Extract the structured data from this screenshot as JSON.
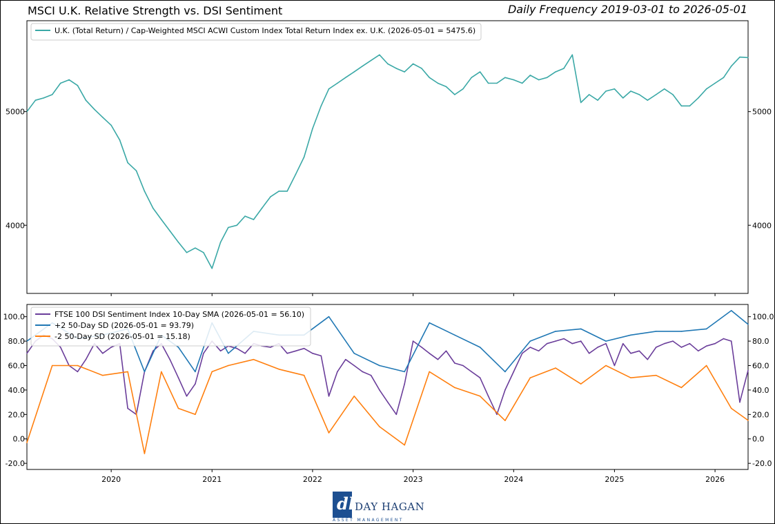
{
  "header": {
    "title": "MSCI U.K. Relative Strength vs. DSI Sentiment",
    "frequency": "Daily Frequency 2019-03-01 to 2026-05-01"
  },
  "logo": {
    "name": "DAY HAGAN",
    "subtitle": "ASSET MANAGEMENT"
  },
  "colors": {
    "teal": "#3aa8a6",
    "purple": "#6a3d9a",
    "blue": "#1f77b4",
    "orange": "#ff7f0e"
  },
  "chart_data": [
    {
      "type": "line",
      "x_range": [
        "2019-03-01",
        "2026-05-01"
      ],
      "ylim": [
        3400,
        5800
      ],
      "yticks": [
        4000,
        5000
      ],
      "ytick_labels": [
        "4000",
        "5000"
      ],
      "grid": false,
      "legend_position": "top-left",
      "series": [
        {
          "name": "U.K. (Total Return) / Cap-Weighted MSCI ACWI Custom Index Total Return Index ex. U.K. (2026-05-01 = 5475.6)",
          "color": "#3aa8a6",
          "x": [
            "2019-03-01",
            "2019-04-01",
            "2019-05-01",
            "2019-06-01",
            "2019-07-01",
            "2019-08-01",
            "2019-09-01",
            "2019-10-01",
            "2019-11-01",
            "2019-12-01",
            "2020-01-01",
            "2020-02-01",
            "2020-03-01",
            "2020-04-01",
            "2020-05-01",
            "2020-06-01",
            "2020-07-01",
            "2020-08-01",
            "2020-09-01",
            "2020-10-01",
            "2020-11-01",
            "2020-12-01",
            "2021-01-01",
            "2021-02-01",
            "2021-03-01",
            "2021-04-01",
            "2021-05-01",
            "2021-06-01",
            "2021-07-01",
            "2021-08-01",
            "2021-09-01",
            "2021-10-01",
            "2021-11-01",
            "2021-12-01",
            "2022-01-01",
            "2022-02-01",
            "2022-03-01",
            "2022-04-01",
            "2022-05-01",
            "2022-06-01",
            "2022-07-01",
            "2022-08-01",
            "2022-09-01",
            "2022-10-01",
            "2022-11-01",
            "2022-12-01",
            "2023-01-01",
            "2023-02-01",
            "2023-03-01",
            "2023-04-01",
            "2023-05-01",
            "2023-06-01",
            "2023-07-01",
            "2023-08-01",
            "2023-09-01",
            "2023-10-01",
            "2023-11-01",
            "2023-12-01",
            "2024-01-01",
            "2024-02-01",
            "2024-03-01",
            "2024-04-01",
            "2024-05-01",
            "2024-06-01",
            "2024-07-01",
            "2024-08-01",
            "2024-09-01",
            "2024-10-01",
            "2024-11-01",
            "2024-12-01",
            "2025-01-01",
            "2025-02-01",
            "2025-03-01",
            "2025-04-01",
            "2025-05-01",
            "2025-06-01",
            "2025-07-01",
            "2025-08-01",
            "2025-09-01",
            "2025-10-01",
            "2025-11-01",
            "2025-12-01",
            "2026-01-01",
            "2026-02-01",
            "2026-03-01",
            "2026-04-01",
            "2026-05-01"
          ],
          "values": [
            5000,
            5100,
            5120,
            5150,
            5250,
            5280,
            5230,
            5100,
            5020,
            4950,
            4880,
            4750,
            4550,
            4480,
            4300,
            4150,
            4050,
            3950,
            3850,
            3760,
            3800,
            3760,
            3620,
            3850,
            3980,
            4000,
            4080,
            4050,
            4150,
            4250,
            4300,
            4300,
            4450,
            4600,
            4850,
            5050,
            5200,
            5250,
            5300,
            5350,
            5400,
            5450,
            5500,
            5420,
            5380,
            5350,
            5420,
            5380,
            5300,
            5250,
            5220,
            5150,
            5200,
            5300,
            5350,
            5250,
            5250,
            5300,
            5280,
            5250,
            5320,
            5280,
            5300,
            5350,
            5380,
            5500,
            5080,
            5150,
            5100,
            5180,
            5200,
            5120,
            5180,
            5150,
            5100,
            5150,
            5200,
            5150,
            5050,
            5050,
            5120,
            5200,
            5250,
            5300,
            5400,
            5480,
            5475.6
          ]
        }
      ]
    },
    {
      "type": "line",
      "x_range": [
        "2019-03-01",
        "2026-05-01"
      ],
      "ylim": [
        -25,
        110
      ],
      "yticks": [
        -20,
        0,
        20,
        40,
        60,
        80,
        100
      ],
      "ytick_labels": [
        "-20.0",
        "0.0",
        "20.0",
        "40.0",
        "60.0",
        "80.0",
        "100.0"
      ],
      "xtick_labels": [
        "2020",
        "2021",
        "2022",
        "2023",
        "2024",
        "2025",
        "2026"
      ],
      "grid": false,
      "legend_position": "top-left",
      "series": [
        {
          "name": "FTSE 100 DSI Sentiment Index 10-Day SMA (2026-05-01 = 56.10)",
          "color": "#6a3d9a",
          "x": [
            "2019-03-01",
            "2019-04-01",
            "2019-05-01",
            "2019-06-01",
            "2019-07-01",
            "2019-08-01",
            "2019-09-01",
            "2019-10-01",
            "2019-11-01",
            "2019-12-01",
            "2020-01-01",
            "2020-02-01",
            "2020-03-01",
            "2020-04-01",
            "2020-05-01",
            "2020-06-01",
            "2020-07-01",
            "2020-08-01",
            "2020-09-01",
            "2020-10-01",
            "2020-11-01",
            "2020-12-01",
            "2021-01-01",
            "2021-02-01",
            "2021-03-01",
            "2021-04-01",
            "2021-05-01",
            "2021-06-01",
            "2021-07-01",
            "2021-08-01",
            "2021-09-01",
            "2021-10-01",
            "2021-11-01",
            "2021-12-01",
            "2022-01-01",
            "2022-02-01",
            "2022-03-01",
            "2022-04-01",
            "2022-05-01",
            "2022-06-01",
            "2022-07-01",
            "2022-08-01",
            "2022-09-01",
            "2022-10-01",
            "2022-11-01",
            "2022-12-01",
            "2023-01-01",
            "2023-02-01",
            "2023-03-01",
            "2023-04-01",
            "2023-05-01",
            "2023-06-01",
            "2023-07-01",
            "2023-08-01",
            "2023-09-01",
            "2023-10-01",
            "2023-11-01",
            "2023-12-01",
            "2024-01-01",
            "2024-02-01",
            "2024-03-01",
            "2024-04-01",
            "2024-05-01",
            "2024-06-01",
            "2024-07-01",
            "2024-08-01",
            "2024-09-01",
            "2024-10-01",
            "2024-11-01",
            "2024-12-01",
            "2025-01-01",
            "2025-02-01",
            "2025-03-01",
            "2025-04-01",
            "2025-05-01",
            "2025-06-01",
            "2025-07-01",
            "2025-08-01",
            "2025-09-01",
            "2025-10-01",
            "2025-11-01",
            "2025-12-01",
            "2026-01-01",
            "2026-02-01",
            "2026-03-01",
            "2026-04-01",
            "2026-05-01"
          ],
          "values": [
            70,
            80,
            85,
            82,
            75,
            60,
            55,
            65,
            78,
            70,
            75,
            78,
            25,
            20,
            55,
            72,
            78,
            65,
            50,
            35,
            45,
            70,
            80,
            72,
            76,
            74,
            70,
            78,
            76,
            75,
            78,
            70,
            72,
            74,
            70,
            68,
            35,
            55,
            65,
            60,
            55,
            52,
            40,
            30,
            20,
            45,
            80,
            75,
            70,
            65,
            72,
            62,
            60,
            55,
            50,
            35,
            20,
            40,
            55,
            70,
            75,
            72,
            78,
            80,
            82,
            78,
            80,
            70,
            75,
            78,
            60,
            78,
            70,
            72,
            65,
            75,
            78,
            80,
            75,
            78,
            72,
            76,
            78,
            82,
            80,
            30,
            56.1
          ]
        },
        {
          "name": "+2 50-Day SD (2026-05-01 = 93.79)",
          "color": "#1f77b4",
          "x": [
            "2019-03-01",
            "2019-06-01",
            "2019-09-01",
            "2019-12-01",
            "2020-03-01",
            "2020-05-01",
            "2020-07-01",
            "2020-09-01",
            "2020-11-01",
            "2021-01-01",
            "2021-03-01",
            "2021-06-01",
            "2021-09-01",
            "2021-12-01",
            "2022-03-01",
            "2022-06-01",
            "2022-09-01",
            "2022-12-01",
            "2023-03-01",
            "2023-06-01",
            "2023-09-01",
            "2023-12-01",
            "2024-03-01",
            "2024-06-01",
            "2024-09-01",
            "2024-12-01",
            "2025-03-01",
            "2025-06-01",
            "2025-09-01",
            "2025-12-01",
            "2026-03-01",
            "2026-05-01"
          ],
          "values": [
            80,
            95,
            82,
            85,
            90,
            55,
            85,
            75,
            55,
            95,
            70,
            88,
            85,
            85,
            100,
            70,
            60,
            55,
            95,
            85,
            75,
            55,
            80,
            88,
            90,
            80,
            85,
            88,
            88,
            90,
            105,
            93.79
          ]
        },
        {
          "name": "-2 50-Day SD (2026-05-01 = 15.18)",
          "color": "#ff7f0e",
          "x": [
            "2019-03-01",
            "2019-06-01",
            "2019-09-01",
            "2019-12-01",
            "2020-03-01",
            "2020-05-01",
            "2020-07-01",
            "2020-09-01",
            "2020-11-01",
            "2021-01-01",
            "2021-03-01",
            "2021-06-01",
            "2021-09-01",
            "2021-12-01",
            "2022-03-01",
            "2022-06-01",
            "2022-09-01",
            "2022-12-01",
            "2023-03-01",
            "2023-06-01",
            "2023-09-01",
            "2023-12-01",
            "2024-03-01",
            "2024-06-01",
            "2024-09-01",
            "2024-12-01",
            "2025-03-01",
            "2025-06-01",
            "2025-09-01",
            "2025-12-01",
            "2026-03-01",
            "2026-05-01"
          ],
          "values": [
            -3,
            60,
            60,
            52,
            55,
            -12,
            55,
            25,
            20,
            55,
            60,
            65,
            57,
            52,
            5,
            35,
            10,
            -5,
            55,
            42,
            35,
            15,
            50,
            58,
            45,
            60,
            50,
            52,
            42,
            60,
            25,
            15.18
          ]
        }
      ]
    }
  ]
}
